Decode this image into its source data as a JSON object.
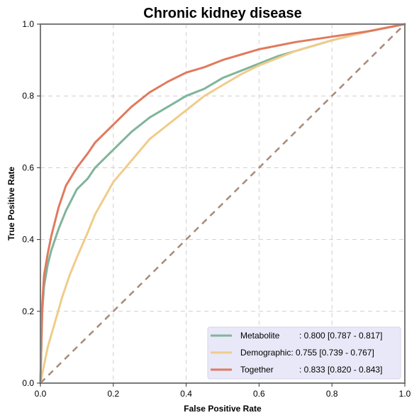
{
  "chart_data": {
    "type": "line",
    "title": "Chronic kidney disease",
    "xlabel": "False Positive Rate",
    "ylabel": "True Positive Rate",
    "xlim": [
      0,
      1
    ],
    "ylim": [
      0,
      1
    ],
    "x_ticks": [
      "0.0",
      "0.2",
      "0.4",
      "0.6",
      "0.8",
      "1.0"
    ],
    "y_ticks": [
      "0.0",
      "0.2",
      "0.4",
      "0.6",
      "0.8",
      "1.0"
    ],
    "grid": true,
    "legend_position": "bottom-right",
    "series": [
      {
        "name": "Metabolite",
        "legend_label": ": 0.800 [0.787 - 0.817]",
        "color": "#7fb59b",
        "x": [
          0,
          0.005,
          0.01,
          0.02,
          0.03,
          0.05,
          0.07,
          0.1,
          0.13,
          0.15,
          0.2,
          0.25,
          0.3,
          0.35,
          0.4,
          0.45,
          0.5,
          0.55,
          0.6,
          0.65,
          0.7,
          0.8,
          0.9,
          1.0
        ],
        "y": [
          0,
          0.2,
          0.27,
          0.33,
          0.37,
          0.43,
          0.48,
          0.54,
          0.57,
          0.6,
          0.65,
          0.7,
          0.74,
          0.77,
          0.8,
          0.82,
          0.85,
          0.87,
          0.89,
          0.91,
          0.925,
          0.955,
          0.98,
          1.0
        ]
      },
      {
        "name": "Demographic",
        "legend_label": ": 0.755 [0.739 - 0.767]",
        "color": "#f0cc8a",
        "x": [
          0,
          0.01,
          0.02,
          0.04,
          0.06,
          0.08,
          0.1,
          0.13,
          0.15,
          0.2,
          0.25,
          0.3,
          0.35,
          0.4,
          0.45,
          0.5,
          0.55,
          0.6,
          0.65,
          0.7,
          0.75,
          0.8,
          0.9,
          1.0
        ],
        "y": [
          0,
          0.05,
          0.1,
          0.17,
          0.24,
          0.3,
          0.35,
          0.42,
          0.47,
          0.56,
          0.62,
          0.68,
          0.72,
          0.76,
          0.8,
          0.83,
          0.86,
          0.885,
          0.905,
          0.925,
          0.94,
          0.955,
          0.98,
          1.0
        ]
      },
      {
        "name": "Together",
        "legend_label": ": 0.833 [0.820 - 0.843]",
        "color": "#e07a5f",
        "x": [
          0,
          0.005,
          0.01,
          0.02,
          0.03,
          0.05,
          0.07,
          0.1,
          0.13,
          0.15,
          0.2,
          0.25,
          0.3,
          0.35,
          0.4,
          0.45,
          0.5,
          0.55,
          0.6,
          0.65,
          0.7,
          0.8,
          0.9,
          1.0
        ],
        "y": [
          0,
          0.22,
          0.3,
          0.36,
          0.41,
          0.49,
          0.55,
          0.6,
          0.64,
          0.67,
          0.72,
          0.77,
          0.81,
          0.84,
          0.865,
          0.88,
          0.9,
          0.915,
          0.93,
          0.94,
          0.95,
          0.965,
          0.98,
          1.0
        ]
      }
    ],
    "reference_line": {
      "x": [
        0,
        1
      ],
      "y": [
        0,
        1
      ],
      "color": "#a88a7a",
      "style": "dashed"
    }
  }
}
